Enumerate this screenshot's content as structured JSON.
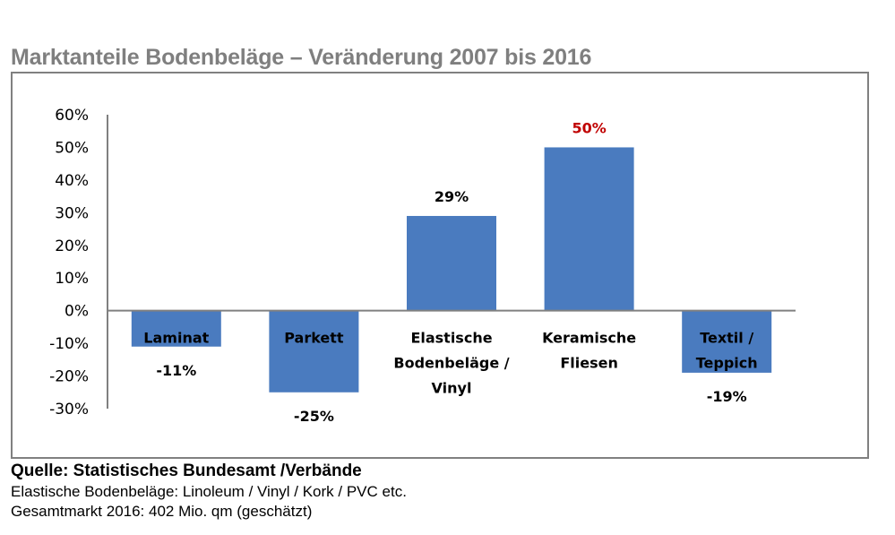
{
  "chart_data": {
    "type": "bar",
    "title": "Marktanteile Bodenbeläge – Veränderung 2007 bis 2016",
    "xlabel": "",
    "ylabel": "",
    "categories": [
      "Laminat",
      "Parkett",
      "Elastische Bodenbeläge / Vinyl",
      "Keramische Fliesen",
      "Textil / Teppich"
    ],
    "category_lines": [
      [
        "Laminat"
      ],
      [
        "Parkett"
      ],
      [
        "Elastische",
        "Bodenbeläge /",
        "Vinyl"
      ],
      [
        "Keramische",
        "Fliesen"
      ],
      [
        "Textil /",
        "Teppich"
      ]
    ],
    "values": [
      -11,
      -25,
      29,
      50,
      -19
    ],
    "value_labels": [
      "-11%",
      "-25%",
      "29%",
      "50%",
      "-19%"
    ],
    "value_label_colors": [
      "#000000",
      "#000000",
      "#000000",
      "#c00000",
      "#000000"
    ],
    "bar_color": "#4a7bbf",
    "ylim": [
      -30,
      60
    ],
    "yticks": [
      60,
      50,
      40,
      30,
      20,
      10,
      0,
      -10,
      -20,
      -30
    ],
    "ytick_labels": [
      "60%",
      "50%",
      "40%",
      "30%",
      "20%",
      "10%",
      "0%",
      "-10%",
      "-20%",
      "-30%"
    ],
    "grid": false,
    "legend": "none"
  },
  "footer": {
    "source": "Quelle: Statistisches Bundesamt /Verbände",
    "note1": "Elastische Bodenbeläge: Linoleum / Vinyl / Kork / PVC etc.",
    "note2": "Gesamtmarkt 2016: 402 Mio. qm (geschätzt)"
  }
}
